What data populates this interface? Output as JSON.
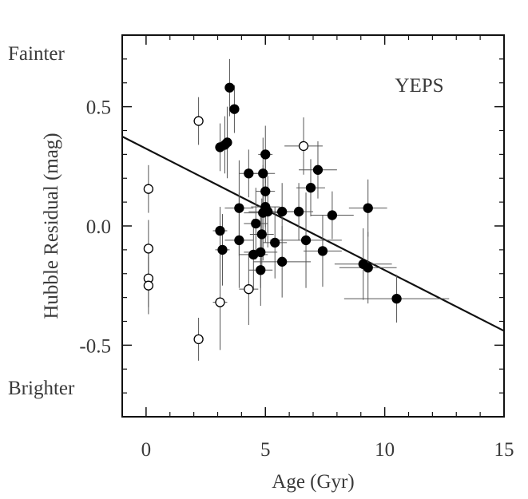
{
  "chart_data": {
    "type": "scatter",
    "title": "YEPS",
    "xlabel": "Age (Gyr)",
    "ylabel": "Hubble Residual (mag)",
    "xlim": [
      -1,
      15
    ],
    "ylim": [
      -0.8,
      0.8
    ],
    "x_ticks": [
      0,
      5,
      10,
      15
    ],
    "x_tick_labels": [
      "0",
      "5",
      "10",
      "15"
    ],
    "y_ticks": [
      0.5,
      0.0,
      -0.5
    ],
    "y_tick_labels": [
      "0.5",
      "0.0",
      "-0.5"
    ],
    "annotations": {
      "top": "Fainter",
      "bottom": "Brighter"
    },
    "grid": false,
    "fit_line": {
      "x": [
        -1,
        15
      ],
      "y": [
        0.375,
        -0.44
      ]
    },
    "series": [
      {
        "name": "filled",
        "marker": "filled-circle",
        "points": [
          {
            "x": 3.5,
            "y": 0.58,
            "xerr": 0.15,
            "yerr": 0.12
          },
          {
            "x": 3.7,
            "y": 0.49,
            "xerr": 0.2,
            "yerr": 0.1
          },
          {
            "x": 3.1,
            "y": 0.33,
            "xerr": 0.15,
            "yerr": 0.1
          },
          {
            "x": 3.3,
            "y": 0.34,
            "xerr": 0.15,
            "yerr": 0.12
          },
          {
            "x": 3.4,
            "y": 0.35,
            "xerr": 0.2,
            "yerr": 0.15
          },
          {
            "x": 5.0,
            "y": 0.3,
            "xerr": 0.3,
            "yerr": 0.12
          },
          {
            "x": 4.3,
            "y": 0.22,
            "xerr": 0.4,
            "yerr": 0.1
          },
          {
            "x": 4.9,
            "y": 0.22,
            "xerr": 0.5,
            "yerr": 0.15
          },
          {
            "x": 7.2,
            "y": 0.235,
            "xerr": 0.8,
            "yerr": 0.12
          },
          {
            "x": 6.9,
            "y": 0.16,
            "xerr": 0.6,
            "yerr": 0.12
          },
          {
            "x": 5.0,
            "y": 0.145,
            "xerr": 0.4,
            "yerr": 0.15
          },
          {
            "x": 3.9,
            "y": 0.075,
            "xerr": 0.6,
            "yerr": 0.2
          },
          {
            "x": 5.0,
            "y": 0.08,
            "xerr": 0.6,
            "yerr": 0.15
          },
          {
            "x": 4.9,
            "y": 0.055,
            "xerr": 0.8,
            "yerr": 0.2
          },
          {
            "x": 5.1,
            "y": 0.06,
            "xerr": 0.8,
            "yerr": 0.15
          },
          {
            "x": 5.7,
            "y": 0.06,
            "xerr": 0.7,
            "yerr": 0.12
          },
          {
            "x": 6.4,
            "y": 0.06,
            "xerr": 0.6,
            "yerr": 0.12
          },
          {
            "x": 7.8,
            "y": 0.045,
            "xerr": 0.9,
            "yerr": 0.1
          },
          {
            "x": 9.3,
            "y": 0.075,
            "xerr": 0.8,
            "yerr": 0.12
          },
          {
            "x": 4.6,
            "y": 0.01,
            "xerr": 0.5,
            "yerr": 0.15
          },
          {
            "x": 3.1,
            "y": -0.02,
            "xerr": 0.3,
            "yerr": 0.1
          },
          {
            "x": 4.85,
            "y": -0.035,
            "xerr": 0.5,
            "yerr": 0.15
          },
          {
            "x": 3.9,
            "y": -0.06,
            "xerr": 0.6,
            "yerr": 0.2
          },
          {
            "x": 5.4,
            "y": -0.07,
            "xerr": 0.5,
            "yerr": 0.15
          },
          {
            "x": 6.7,
            "y": -0.06,
            "xerr": 1.5,
            "yerr": 0.2
          },
          {
            "x": 3.2,
            "y": -0.1,
            "xerr": 0.3,
            "yerr": 0.15
          },
          {
            "x": 4.5,
            "y": -0.12,
            "xerr": 0.6,
            "yerr": 0.15
          },
          {
            "x": 4.8,
            "y": -0.11,
            "xerr": 0.7,
            "yerr": 0.15
          },
          {
            "x": 7.4,
            "y": -0.105,
            "xerr": 0.8,
            "yerr": 0.15
          },
          {
            "x": 5.7,
            "y": -0.15,
            "xerr": 1.2,
            "yerr": 0.15
          },
          {
            "x": 4.8,
            "y": -0.185,
            "xerr": 0.5,
            "yerr": 0.15
          },
          {
            "x": 9.1,
            "y": -0.16,
            "xerr": 1.2,
            "yerr": 0.15
          },
          {
            "x": 9.3,
            "y": -0.175,
            "xerr": 1.2,
            "yerr": 0.15
          },
          {
            "x": 10.5,
            "y": -0.305,
            "xerr": 2.2,
            "yerr": 0.1
          }
        ]
      },
      {
        "name": "open",
        "marker": "open-circle",
        "points": [
          {
            "x": 2.2,
            "y": 0.44,
            "xerr": 0.0,
            "yerr": 0.1
          },
          {
            "x": 6.6,
            "y": 0.335,
            "xerr": 0.8,
            "yerr": 0.12
          },
          {
            "x": 0.1,
            "y": 0.155,
            "xerr": 0.0,
            "yerr": 0.1
          },
          {
            "x": 0.1,
            "y": -0.095,
            "xerr": 0.0,
            "yerr": 0.12
          },
          {
            "x": 0.1,
            "y": -0.22,
            "xerr": 0.0,
            "yerr": 0.12
          },
          {
            "x": 0.1,
            "y": -0.25,
            "xerr": 0.0,
            "yerr": 0.12
          },
          {
            "x": 4.3,
            "y": -0.265,
            "xerr": 0.4,
            "yerr": 0.15
          },
          {
            "x": 3.1,
            "y": -0.32,
            "xerr": 0.3,
            "yerr": 0.2
          },
          {
            "x": 2.2,
            "y": -0.475,
            "xerr": 0.0,
            "yerr": 0.09
          }
        ]
      }
    ]
  }
}
